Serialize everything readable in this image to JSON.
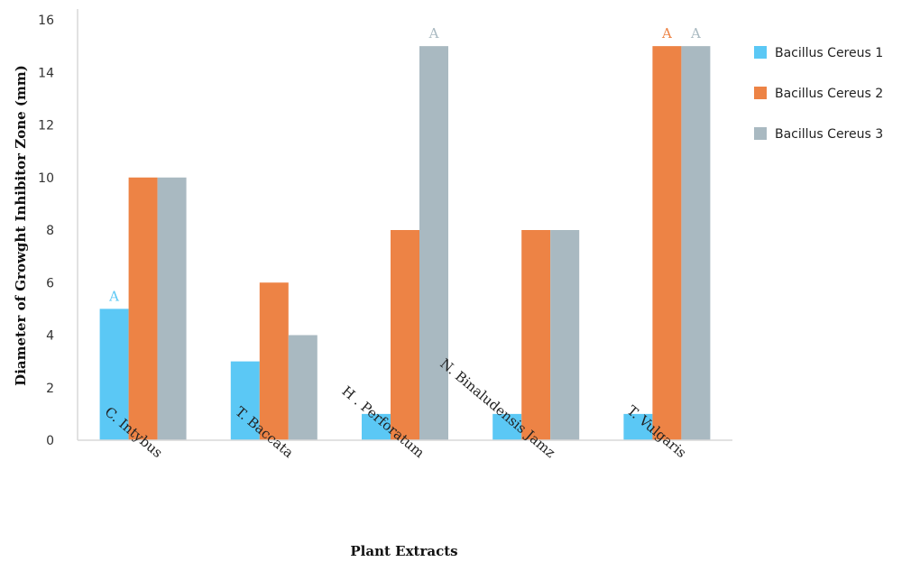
{
  "chart_data": {
    "type": "bar",
    "title": "",
    "xlabel": "Plant Extracts",
    "ylabel": "Diameter of Growght Inhibitor Zone (mm)",
    "ylim": [
      0,
      16
    ],
    "yticks": [
      0,
      2,
      4,
      6,
      8,
      10,
      12,
      14,
      16
    ],
    "grid": false,
    "legend_position": "right",
    "categories": [
      "C. Intybus",
      "T. Baccata",
      "H . Perforatum",
      "N. Binaludensis Jamz",
      "T. Vulgaris"
    ],
    "series": [
      {
        "name": "Bacillus Cereus 1",
        "color": "#5bc8f5",
        "values": [
          5,
          3,
          1,
          1,
          1
        ]
      },
      {
        "name": "Bacillus Cereus 2",
        "color": "#ed8345",
        "values": [
          10,
          6,
          8,
          8,
          15
        ]
      },
      {
        "name": "Bacillus Cereus 3",
        "color": "#a9b9c1",
        "values": [
          10,
          4,
          15,
          8,
          15
        ]
      }
    ],
    "annotations": [
      {
        "text": "A",
        "category": "C. Intybus",
        "series": "Bacillus Cereus 1"
      },
      {
        "text": "A",
        "category": "H . Perforatum",
        "series": "Bacillus Cereus 3"
      },
      {
        "text": "A",
        "category": "T. Vulgaris",
        "series": "Bacillus Cereus 2"
      },
      {
        "text": "A",
        "category": "T. Vulgaris",
        "series": "Bacillus Cereus 3"
      }
    ]
  }
}
